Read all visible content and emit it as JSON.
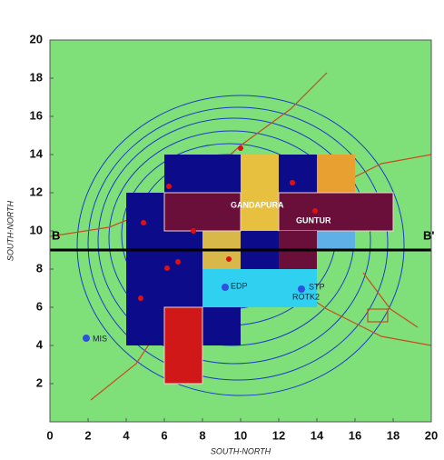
{
  "chart_data": {
    "type": "map",
    "x_label": "SOUTH-NORTH",
    "y_label": "SOUTH-NORTH",
    "xlim": [
      0,
      20
    ],
    "ylim": [
      0,
      20
    ],
    "xticks": [
      0,
      2,
      4,
      6,
      8,
      10,
      12,
      14,
      16,
      18,
      20
    ],
    "yticks": [
      2,
      4,
      6,
      8,
      10,
      12,
      14,
      16,
      18,
      20
    ],
    "section_labels": [
      "B",
      "B'"
    ],
    "place_labels": [
      "GANDAPURA",
      "GUNTUR",
      "MIS",
      "EDP",
      "STP",
      "ROTK2"
    ]
  }
}
